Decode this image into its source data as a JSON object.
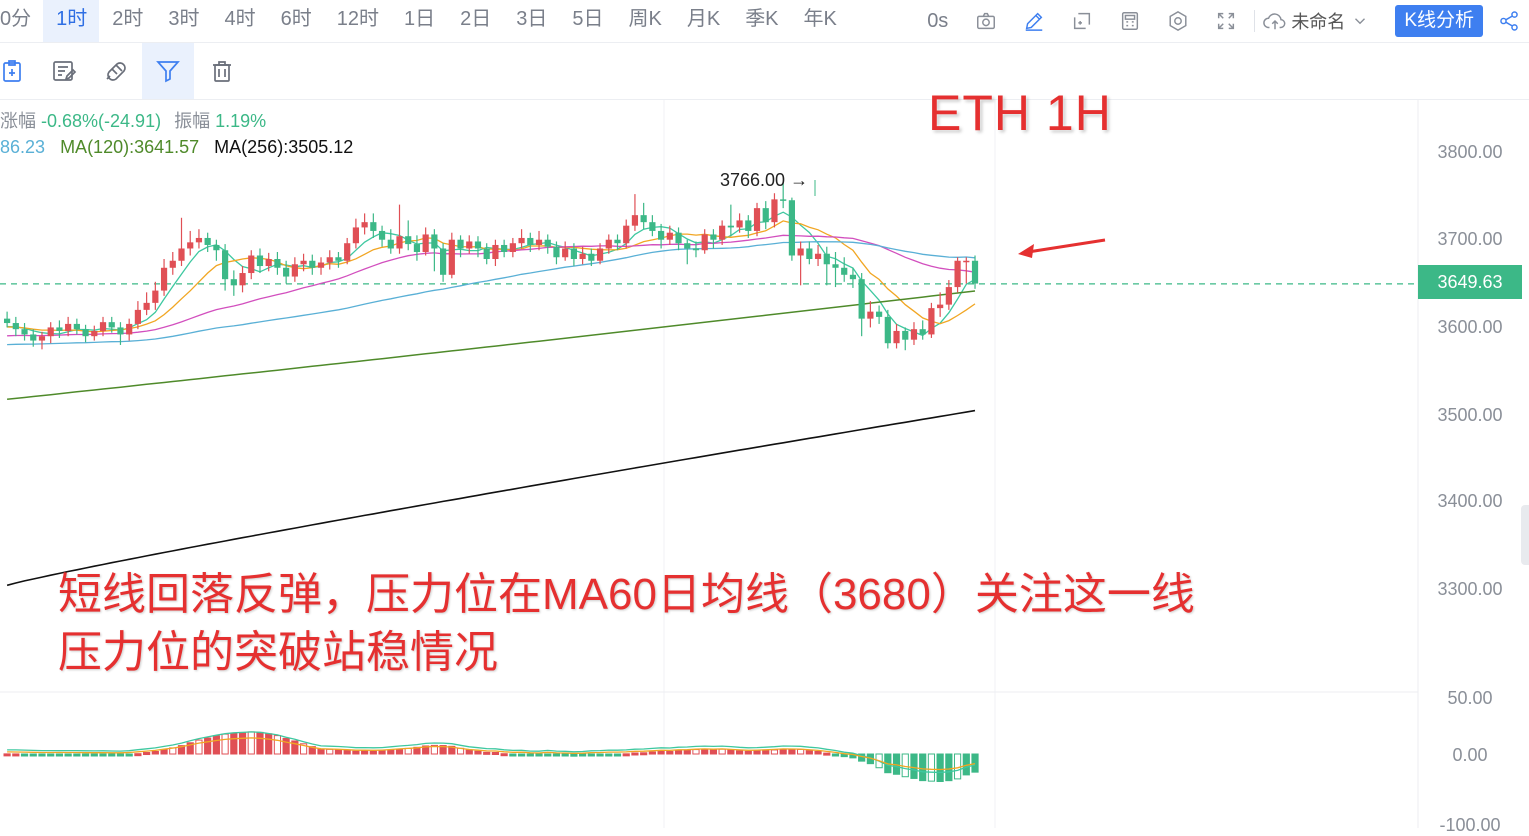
{
  "toolbar": {
    "periods": [
      "0分",
      "1时",
      "2时",
      "3时",
      "4时",
      "6时",
      "12时",
      "1日",
      "2日",
      "3日",
      "5日",
      "周K",
      "月K",
      "季K",
      "年K"
    ],
    "active_period": "1时",
    "countdown": "0s",
    "layout_name": "未命名",
    "kline_button": "K线分析",
    "icons": [
      "camera-icon",
      "pencil-icon",
      "add-window-icon",
      "calculator-icon",
      "settings-hex-icon",
      "fullscreen-icon",
      "cloud-upload-icon",
      "chevron-down-icon",
      "share-icon"
    ]
  },
  "drawing_tools": [
    "clipboard-icon",
    "edit-note-icon",
    "magnet-icon",
    "filter-icon",
    "trash-icon"
  ],
  "legend": {
    "change_label": "涨幅",
    "change_value": "-0.68%(-24.91)",
    "amplitude_label": "振幅",
    "amplitude_value": "1.19%",
    "ma_partial": "86.23",
    "ma120": "MA(120):3641.57",
    "ma256": "MA(256):3505.12"
  },
  "annotations": {
    "title": "ETH 1H",
    "note_line1": "短线回落反弹，压力位在MA60日均线（3680）关注这一线",
    "note_line2": "压力位的突破站稳情况",
    "peak_label": "3766.00 →"
  },
  "colors": {
    "up": "#e04f55",
    "down": "#3cb887",
    "ma_cyan": "#5ab0d6",
    "ma_magenta": "#d24fbe",
    "ma_orange": "#f1a623",
    "ma_teal": "#3ec8a0",
    "ma120": "#4f8a2a",
    "ma256": "#111111",
    "annotation": "#e53030"
  },
  "chart_data": {
    "type": "candlestick",
    "symbol": "ETH",
    "interval": "1H",
    "current_price": "3649.63",
    "y_ticks": [
      "3800.00",
      "3700.00",
      "3600.00",
      "3500.00",
      "3400.00",
      "3300.00"
    ],
    "macd_ticks": [
      "50.00",
      "0.00",
      "-100.00"
    ],
    "peak_high": 3766.0,
    "ma_values": {
      "ma120": 3641.57,
      "ma256": 3505.12
    },
    "candles": [
      [
        3610,
        3605,
        3618,
        3600
      ],
      [
        3605,
        3598,
        3612,
        3590
      ],
      [
        3598,
        3592,
        3605,
        3585
      ],
      [
        3592,
        3585,
        3598,
        3578
      ],
      [
        3585,
        3590,
        3595,
        3575
      ],
      [
        3590,
        3600,
        3606,
        3582
      ],
      [
        3600,
        3596,
        3608,
        3588
      ],
      [
        3596,
        3604,
        3612,
        3590
      ],
      [
        3604,
        3598,
        3610,
        3592
      ],
      [
        3598,
        3590,
        3603,
        3583
      ],
      [
        3590,
        3596,
        3602,
        3585
      ],
      [
        3596,
        3606,
        3612,
        3590
      ],
      [
        3606,
        3600,
        3612,
        3594
      ],
      [
        3600,
        3592,
        3606,
        3580
      ],
      [
        3592,
        3604,
        3610,
        3585
      ],
      [
        3604,
        3620,
        3630,
        3598
      ],
      [
        3620,
        3628,
        3640,
        3614
      ],
      [
        3628,
        3642,
        3652,
        3620
      ],
      [
        3642,
        3668,
        3678,
        3636
      ],
      [
        3668,
        3676,
        3686,
        3660
      ],
      [
        3676,
        3690,
        3725,
        3670
      ],
      [
        3690,
        3697,
        3710,
        3682
      ],
      [
        3697,
        3702,
        3712,
        3690
      ],
      [
        3702,
        3694,
        3708,
        3686
      ],
      [
        3694,
        3688,
        3700,
        3676
      ],
      [
        3688,
        3655,
        3695,
        3642
      ],
      [
        3655,
        3648,
        3665,
        3636
      ],
      [
        3648,
        3662,
        3670,
        3640
      ],
      [
        3662,
        3682,
        3688,
        3655
      ],
      [
        3682,
        3670,
        3690,
        3662
      ],
      [
        3670,
        3678,
        3685,
        3664
      ],
      [
        3678,
        3668,
        3686,
        3660
      ],
      [
        3668,
        3658,
        3676,
        3650
      ],
      [
        3658,
        3672,
        3680,
        3652
      ],
      [
        3672,
        3676,
        3684,
        3664
      ],
      [
        3676,
        3668,
        3683,
        3660
      ],
      [
        3668,
        3674,
        3680,
        3660
      ],
      [
        3674,
        3680,
        3688,
        3666
      ],
      [
        3680,
        3676,
        3686,
        3668
      ],
      [
        3676,
        3696,
        3702,
        3672
      ],
      [
        3696,
        3714,
        3724,
        3690
      ],
      [
        3714,
        3720,
        3730,
        3706
      ],
      [
        3720,
        3710,
        3730,
        3702
      ],
      [
        3710,
        3700,
        3716,
        3692
      ],
      [
        3700,
        3690,
        3712,
        3684
      ],
      [
        3690,
        3704,
        3740,
        3684
      ],
      [
        3704,
        3695,
        3722,
        3688
      ],
      [
        3695,
        3686,
        3705,
        3676
      ],
      [
        3686,
        3706,
        3714,
        3682
      ],
      [
        3706,
        3690,
        3712,
        3664
      ],
      [
        3690,
        3660,
        3696,
        3652
      ],
      [
        3660,
        3700,
        3708,
        3656
      ],
      [
        3700,
        3690,
        3705,
        3680
      ],
      [
        3690,
        3698,
        3705,
        3684
      ],
      [
        3698,
        3690,
        3704,
        3680
      ],
      [
        3690,
        3678,
        3696,
        3672
      ],
      [
        3678,
        3694,
        3700,
        3670
      ],
      [
        3694,
        3686,
        3700,
        3680
      ],
      [
        3686,
        3696,
        3702,
        3680
      ],
      [
        3696,
        3702,
        3712,
        3690
      ],
      [
        3702,
        3694,
        3708,
        3686
      ],
      [
        3694,
        3700,
        3710,
        3688
      ],
      [
        3700,
        3692,
        3706,
        3684
      ],
      [
        3692,
        3680,
        3698,
        3672
      ],
      [
        3680,
        3690,
        3698,
        3676
      ],
      [
        3690,
        3678,
        3696,
        3670
      ],
      [
        3678,
        3684,
        3692,
        3672
      ],
      [
        3684,
        3676,
        3690,
        3670
      ],
      [
        3676,
        3690,
        3696,
        3672
      ],
      [
        3690,
        3700,
        3706,
        3684
      ],
      [
        3700,
        3696,
        3706,
        3688
      ],
      [
        3696,
        3716,
        3723,
        3690
      ],
      [
        3716,
        3728,
        3752,
        3710
      ],
      [
        3728,
        3720,
        3742,
        3712
      ],
      [
        3720,
        3710,
        3728,
        3704
      ],
      [
        3710,
        3700,
        3718,
        3690
      ],
      [
        3700,
        3708,
        3716,
        3694
      ],
      [
        3708,
        3696,
        3714,
        3688
      ],
      [
        3696,
        3690,
        3700,
        3672
      ],
      [
        3690,
        3688,
        3698,
        3680
      ],
      [
        3688,
        3706,
        3712,
        3684
      ],
      [
        3706,
        3700,
        3712,
        3690
      ],
      [
        3700,
        3716,
        3722,
        3694
      ],
      [
        3716,
        3714,
        3740,
        3704
      ],
      [
        3714,
        3722,
        3730,
        3708
      ],
      [
        3722,
        3710,
        3728,
        3702
      ],
      [
        3710,
        3736,
        3742,
        3704
      ],
      [
        3736,
        3720,
        3744,
        3712
      ],
      [
        3720,
        3746,
        3753,
        3714
      ],
      [
        3746,
        3745,
        3766,
        3736
      ],
      [
        3745,
        3682,
        3748,
        3676
      ],
      [
        3682,
        3690,
        3698,
        3648
      ],
      [
        3690,
        3678,
        3698,
        3672
      ],
      [
        3678,
        3684,
        3694,
        3670
      ],
      [
        3684,
        3672,
        3692,
        3648
      ],
      [
        3672,
        3668,
        3686,
        3646
      ],
      [
        3668,
        3660,
        3680,
        3652
      ],
      [
        3660,
        3655,
        3668,
        3645
      ],
      [
        3655,
        3610,
        3662,
        3590
      ],
      [
        3610,
        3618,
        3630,
        3600
      ],
      [
        3618,
        3612,
        3625,
        3604
      ],
      [
        3612,
        3582,
        3620,
        3576
      ],
      [
        3582,
        3596,
        3604,
        3576
      ],
      [
        3596,
        3586,
        3600,
        3574
      ],
      [
        3586,
        3598,
        3606,
        3580
      ],
      [
        3598,
        3592,
        3608,
        3586
      ],
      [
        3592,
        3622,
        3628,
        3588
      ],
      [
        3622,
        3626,
        3640,
        3612
      ],
      [
        3626,
        3646,
        3654,
        3620
      ],
      [
        3646,
        3676,
        3680,
        3640
      ],
      [
        3676,
        3676,
        3680,
        3650
      ],
      [
        3676,
        3650,
        3682,
        3644
      ]
    ]
  }
}
